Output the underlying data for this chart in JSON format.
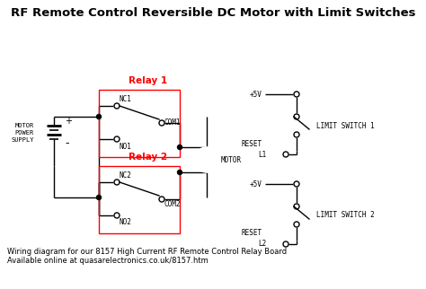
{
  "title": "RF Remote Control Reversible DC Motor with Limit Switches",
  "title_fontsize": 9.5,
  "title_fontweight": "bold",
  "relay1_label": "Relay 1",
  "relay2_label": "Relay 2",
  "box_color": "red",
  "bg_color": "white",
  "footer_line1": "Wiring diagram for our 8157 High Current RF Remote Control Relay Board",
  "footer_line2": "Available online at quasarelectronics.co.uk/8157.htm",
  "footer_fontsize": 6.0,
  "motor_label": "MOTOR",
  "power_label1": "MOTOR",
  "power_label2": "POWER",
  "power_label3": "SUPPLY",
  "plus_label": "+",
  "minus_label": "-",
  "nc1_label": "NC1",
  "no1_label": "NO1",
  "com1_label": "COM1",
  "nc2_label": "NC2",
  "no2_label": "NO2",
  "com2_label": "COM2",
  "v5_label": "+5V",
  "reset_l1_label1": "RESET",
  "reset_l1_label2": "L1",
  "reset_l2_label1": "RESET",
  "reset_l2_label2": "L2",
  "limit_switch1_label": "LIMIT SWITCH 1",
  "limit_switch2_label": "LIMIT SWITCH 2"
}
